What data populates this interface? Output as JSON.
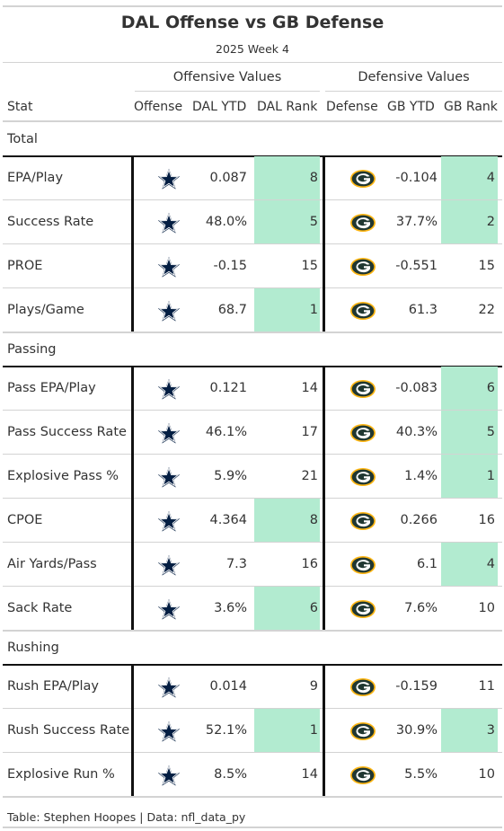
{
  "title": "DAL Offense vs GB Defense",
  "subtitle": "2025 Week 4",
  "spanners": {
    "offense": "Offensive Values",
    "defense": "Defensive Values"
  },
  "columns": {
    "stat": "Stat",
    "offense": "Offense",
    "off_ytd": "DAL YTD",
    "off_rank": "DAL Rank",
    "defense": "Defense",
    "def_ytd": "GB YTD",
    "def_rank": "GB Rank"
  },
  "icons": {
    "offense": "dallas-star-icon",
    "defense": "packers-g-icon"
  },
  "colors": {
    "highlight": "#b2ebd0",
    "cowboys_navy": "#041e42",
    "packers_green": "#203731",
    "packers_gold": "#ffb612"
  },
  "groups": [
    {
      "label": "Total",
      "rows": [
        {
          "stat": "EPA/Play",
          "off_ytd": "0.087",
          "off_rank": "8",
          "off_hl": true,
          "def_ytd": "-0.104",
          "def_rank": "4",
          "def_hl": true
        },
        {
          "stat": "Success Rate",
          "off_ytd": "48.0%",
          "off_rank": "5",
          "off_hl": true,
          "def_ytd": "37.7%",
          "def_rank": "2",
          "def_hl": true
        },
        {
          "stat": "PROE",
          "off_ytd": "-0.15",
          "off_rank": "15",
          "off_hl": false,
          "def_ytd": "-0.551",
          "def_rank": "15",
          "def_hl": false
        },
        {
          "stat": "Plays/Game",
          "off_ytd": "68.7",
          "off_rank": "1",
          "off_hl": true,
          "def_ytd": "61.3",
          "def_rank": "22",
          "def_hl": false
        }
      ]
    },
    {
      "label": "Passing",
      "rows": [
        {
          "stat": "Pass EPA/Play",
          "off_ytd": "0.121",
          "off_rank": "14",
          "off_hl": false,
          "def_ytd": "-0.083",
          "def_rank": "6",
          "def_hl": true
        },
        {
          "stat": "Pass Success Rate",
          "off_ytd": "46.1%",
          "off_rank": "17",
          "off_hl": false,
          "def_ytd": "40.3%",
          "def_rank": "5",
          "def_hl": true
        },
        {
          "stat": "Explosive Pass %",
          "off_ytd": "5.9%",
          "off_rank": "21",
          "off_hl": false,
          "def_ytd": "1.4%",
          "def_rank": "1",
          "def_hl": true
        },
        {
          "stat": "CPOE",
          "off_ytd": "4.364",
          "off_rank": "8",
          "off_hl": true,
          "def_ytd": "0.266",
          "def_rank": "16",
          "def_hl": false
        },
        {
          "stat": "Air Yards/Pass",
          "off_ytd": "7.3",
          "off_rank": "16",
          "off_hl": false,
          "def_ytd": "6.1",
          "def_rank": "4",
          "def_hl": true
        },
        {
          "stat": "Sack Rate",
          "off_ytd": "3.6%",
          "off_rank": "6",
          "off_hl": true,
          "def_ytd": "7.6%",
          "def_rank": "10",
          "def_hl": false
        }
      ]
    },
    {
      "label": "Rushing",
      "rows": [
        {
          "stat": "Rush EPA/Play",
          "off_ytd": "0.014",
          "off_rank": "9",
          "off_hl": false,
          "def_ytd": "-0.159",
          "def_rank": "11",
          "def_hl": false
        },
        {
          "stat": "Rush Success Rate",
          "off_ytd": "52.1%",
          "off_rank": "1",
          "off_hl": true,
          "def_ytd": "30.9%",
          "def_rank": "3",
          "def_hl": true
        },
        {
          "stat": "Explosive Run %",
          "off_ytd": "8.5%",
          "off_rank": "14",
          "off_hl": false,
          "def_ytd": "5.5%",
          "def_rank": "10",
          "def_hl": false
        }
      ]
    }
  ],
  "source": "Table: Stephen Hoopes | Data: nfl_data_py"
}
